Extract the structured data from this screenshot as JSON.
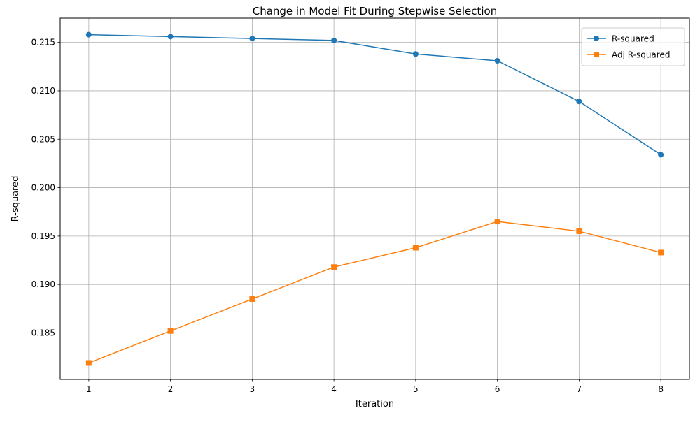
{
  "chart_data": {
    "type": "line",
    "title": "Change in Model Fit During Stepwise Selection",
    "xlabel": "Iteration",
    "ylabel": "R-squared",
    "x": [
      1,
      2,
      3,
      4,
      5,
      6,
      7,
      8
    ],
    "xlim": [
      0.65,
      8.35
    ],
    "ylim": [
      0.1802,
      0.2175
    ],
    "yticks": [
      0.185,
      0.19,
      0.195,
      0.2,
      0.205,
      0.21,
      0.215
    ],
    "ytick_labels": [
      "0.185",
      "0.190",
      "0.195",
      "0.200",
      "0.205",
      "0.210",
      "0.215"
    ],
    "xtick_labels": [
      "1",
      "2",
      "3",
      "4",
      "5",
      "6",
      "7",
      "8"
    ],
    "grid": true,
    "legend_position": "top-right",
    "series": [
      {
        "name": "R-squared",
        "color": "#1f77b4",
        "marker": "circle",
        "values": [
          0.2158,
          0.2156,
          0.2154,
          0.2152,
          0.2138,
          0.2131,
          0.2089,
          0.2034
        ]
      },
      {
        "name": "Adj R-squared",
        "color": "#ff7f0e",
        "marker": "square",
        "values": [
          0.1819,
          0.1852,
          0.1885,
          0.1918,
          0.1938,
          0.1965,
          0.1955,
          0.1933
        ]
      }
    ]
  }
}
